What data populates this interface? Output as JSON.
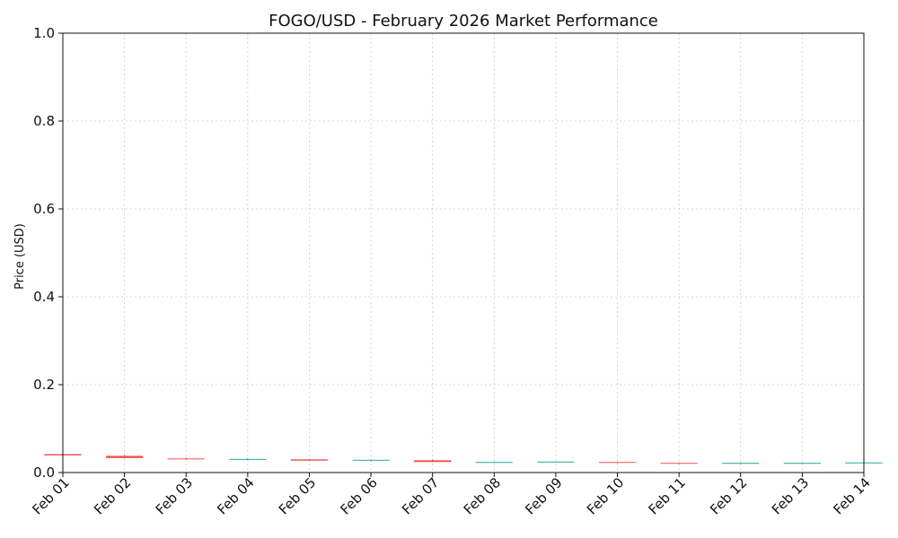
{
  "chart_data": {
    "type": "candlestick",
    "title": "FOGO/USD - February 2026 Market Performance",
    "xlabel": "",
    "ylabel": "Price (USD)",
    "ylim": [
      0,
      1.0
    ],
    "y_ticks": [
      "0.0",
      "0.2",
      "0.4",
      "0.6",
      "0.8",
      "1.0"
    ],
    "grid": true,
    "up_color": "#26a69a",
    "down_color": "#ef5350",
    "categories": [
      "Feb 01",
      "Feb 02",
      "Feb 03",
      "Feb 04",
      "Feb 05",
      "Feb 06",
      "Feb 07",
      "Feb 08",
      "Feb 09",
      "Feb 10",
      "Feb 11",
      "Feb 12",
      "Feb 13",
      "Feb 14"
    ],
    "series": [
      {
        "open": [
          0.042,
          0.038,
          0.032,
          0.03,
          0.03,
          0.027,
          0.028,
          0.024,
          0.024,
          0.024,
          0.022,
          0.02,
          0.022,
          0.022
        ],
        "high": [
          0.043,
          0.041,
          0.034,
          0.033,
          0.031,
          0.029,
          0.03,
          0.025,
          0.025,
          0.025,
          0.023,
          0.023,
          0.023,
          0.023
        ],
        "low": [
          0.038,
          0.032,
          0.029,
          0.028,
          0.026,
          0.025,
          0.024,
          0.023,
          0.023,
          0.021,
          0.019,
          0.019,
          0.021,
          0.021
        ],
        "close": [
          0.039,
          0.033,
          0.03,
          0.031,
          0.027,
          0.029,
          0.024,
          0.024,
          0.025,
          0.022,
          0.02,
          0.022,
          0.022,
          0.023
        ]
      }
    ]
  }
}
